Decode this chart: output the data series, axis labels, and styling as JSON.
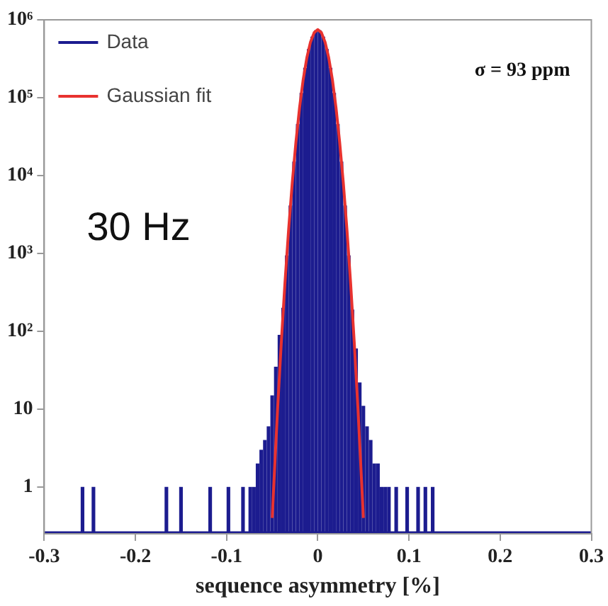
{
  "chart_data": {
    "type": "histogram",
    "xlabel": "sequence asymmetry [%]",
    "annotations": [
      "σ = 93 ppm",
      "30 Hz"
    ],
    "xlim": [
      -0.3,
      0.3
    ],
    "xticks": [
      -0.3,
      -0.2,
      -0.1,
      0,
      0.1,
      0.2,
      0.3
    ],
    "ylim": [
      0.25,
      1000000
    ],
    "yticks": [
      1,
      10,
      {
        "value": 100,
        "label": "10²"
      },
      {
        "value": 1000,
        "label": "10³"
      },
      {
        "value": 10000,
        "label": "10⁴"
      },
      {
        "value": 100000,
        "label": "10⁵"
      },
      {
        "value": 1000000,
        "label": "10⁶"
      }
    ],
    "log": "y",
    "grid": false,
    "legend": "top left",
    "series": [
      {
        "name": "Data",
        "color": "#1c1c8f",
        "bins": [
          -0.26,
          -0.256,
          -0.248,
          -0.244,
          -0.168,
          -0.164,
          -0.152,
          -0.148,
          -0.12,
          -0.116,
          -0.1,
          -0.096,
          -0.084,
          -0.08,
          -0.076,
          -0.072,
          -0.068,
          -0.064,
          -0.06,
          -0.056,
          -0.052,
          -0.048,
          -0.044,
          -0.04,
          -0.036,
          -0.032,
          -0.028,
          -0.024,
          -0.02,
          -0.016,
          -0.012,
          -0.008,
          -0.004,
          0,
          0.004,
          0.008,
          0.012,
          0.016,
          0.02,
          0.024,
          0.028,
          0.032,
          0.036,
          0.04,
          0.044,
          0.048,
          0.052,
          0.056,
          0.06,
          0.064,
          0.068,
          0.072,
          0.076,
          0.08,
          0.084,
          0.088,
          0.096,
          0.1,
          0.108,
          0.112,
          0.116,
          0.12,
          0.124,
          0.128
        ],
        "values": [
          1,
          null,
          1,
          null,
          1,
          null,
          1,
          null,
          1,
          null,
          1,
          null,
          1,
          null,
          1,
          1,
          2,
          3,
          4,
          6,
          15,
          35,
          90,
          200,
          940,
          4130,
          15100,
          45700,
          115000,
          242000,
          421000,
          609000,
          733000,
          733000,
          609000,
          421000,
          242000,
          115000,
          45700,
          15100,
          4130,
          940,
          190,
          60,
          22,
          11,
          6,
          4,
          2,
          2,
          1,
          1,
          1,
          null,
          1,
          null,
          1,
          null,
          1,
          null,
          1,
          null,
          1
        ]
      },
      {
        "name": "Gaussian fit",
        "type": "line",
        "color": "#e8322f",
        "x": [
          -0.05,
          -0.048,
          -0.044,
          -0.04,
          -0.036,
          -0.032,
          -0.028,
          -0.024,
          -0.02,
          -0.016,
          -0.012,
          -0.008,
          -0.004,
          0,
          0.004,
          0.008,
          0.012,
          0.016,
          0.02,
          0.024,
          0.028,
          0.032,
          0.036,
          0.04,
          0.044,
          0.048,
          0.05
        ],
        "values": [
          0.4,
          1.2,
          10.4,
          72,
          418,
          2010,
          8070,
          26800,
          74200,
          171000,
          326000,
          518000,
          684000,
          750000,
          684000,
          518000,
          326000,
          171000,
          74200,
          26800,
          8070,
          2010,
          418,
          72,
          10.4,
          1.2,
          0.4
        ]
      }
    ]
  }
}
